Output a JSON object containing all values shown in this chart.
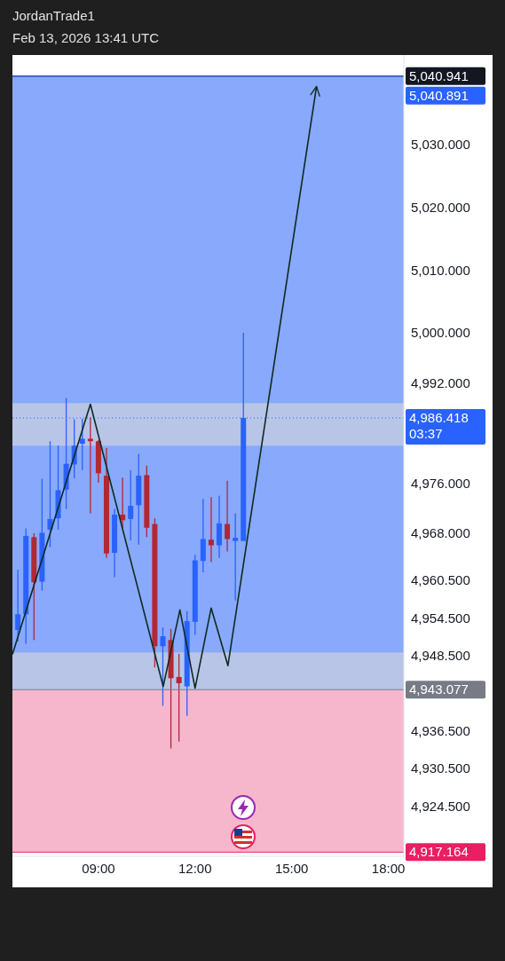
{
  "chart_data": {
    "type": "candlestick",
    "title": "JordanTrade1",
    "subtitle": "Feb 13, 2026 13:41 UTC",
    "x": [
      6.5,
      6.75,
      7,
      7.25,
      7.5,
      7.75,
      8,
      8.25,
      8.5,
      8.75,
      9,
      9.25,
      9.5,
      9.75,
      10,
      10.25,
      10.5,
      10.75,
      11,
      11.25,
      11.5,
      11.75,
      12,
      12.25,
      12.5,
      12.75,
      13,
      13.25,
      13.5
    ],
    "ohlc": [
      [
        4952.6,
        4962.2,
        4950.7,
        4955.1
      ],
      [
        4955.1,
        4968.8,
        4950.4,
        4967.6
      ],
      [
        4967.4,
        4968.0,
        4951.0,
        4960.2
      ],
      [
        4960.3,
        4976.7,
        4958.9,
        4968.1
      ],
      [
        4968.6,
        4982.7,
        4965.8,
        4970.3
      ],
      [
        4970.4,
        4982.0,
        4968.6,
        4974.9
      ],
      [
        4975.0,
        4989.6,
        4971.9,
        4979.1
      ],
      [
        4979.0,
        4986.2,
        4976.8,
        4982.0
      ],
      [
        4982.3,
        4986.3,
        4978.1,
        4983.1
      ],
      [
        4983.1,
        4986.5,
        4971.2,
        4982.7
      ],
      [
        4982.7,
        4982.9,
        4976.1,
        4977.6
      ],
      [
        4977.2,
        4981.6,
        4964.1,
        4964.8
      ],
      [
        4964.9,
        4971.9,
        4961.0,
        4971.0
      ],
      [
        4971.0,
        4976.9,
        4968.8,
        4970.1
      ],
      [
        4970.3,
        4978.1,
        4966.9,
        4972.4
      ],
      [
        4972.5,
        4980.7,
        4966.2,
        4977.2
      ],
      [
        4977.3,
        4978.8,
        4967.4,
        4968.9
      ],
      [
        4969.5,
        4970.4,
        4946.6,
        4950.0
      ],
      [
        4950.0,
        4953.0,
        4940.5,
        4951.6
      ],
      [
        4951.0,
        4952.8,
        4933.7,
        4944.9
      ],
      [
        4945.1,
        4948.8,
        4934.8,
        4944.1
      ],
      [
        4943.6,
        4955.6,
        4938.9,
        4954.0
      ],
      [
        4953.9,
        4964.6,
        4951.8,
        4963.7
      ],
      [
        4963.6,
        4973.5,
        4961.8,
        4967.1
      ],
      [
        4967.0,
        4973.8,
        4963.4,
        4966.1
      ],
      [
        4966.1,
        4974.0,
        4964.1,
        4969.6
      ],
      [
        4969.5,
        4976.4,
        4965.1,
        4967.1
      ],
      [
        4966.8,
        4971.2,
        4957.3,
        4967.3
      ],
      [
        4966.8,
        5000.0,
        4966.8,
        4986.418
      ]
    ],
    "colors": [
      "#2962ff",
      "#2962ff",
      "#b22833",
      "#2962ff",
      "#2962ff",
      "#2962ff",
      "#2962ff",
      "#2962ff",
      "#2962ff",
      "#b22833",
      "#b22833",
      "#b22833",
      "#2962ff",
      "#b22833",
      "#2962ff",
      "#2962ff",
      "#b22833",
      "#b22833",
      "#2962ff",
      "#b22833",
      "#b22833",
      "#2962ff",
      "#2962ff",
      "#2962ff",
      "#b22833",
      "#2962ff",
      "#b22833",
      "#2962ff",
      "#2962ff"
    ],
    "series": [
      {
        "type": "line",
        "color": "#0f2a22",
        "x": [
          6.33,
          8.75,
          11.01,
          11.53,
          12.0,
          12.5,
          13.02,
          15.77
        ],
        "values": [
          4948.7,
          4988.6,
          4943.6,
          4955.8,
          4943.3,
          4956.1,
          4946.9,
          5039.3
        ]
      }
    ],
    "xlim": [
      6.33,
      18.48
    ],
    "xticks": [
      {
        "value": 9,
        "label": "09:00"
      },
      {
        "value": 12,
        "label": "12:00"
      },
      {
        "value": 15,
        "label": "15:00"
      },
      {
        "value": 18,
        "label": "18:00"
      }
    ],
    "ylim": [
      4916.5,
      5044.3
    ],
    "yticks": [
      {
        "value": 4924.5,
        "label": "4,924.500"
      },
      {
        "value": 4930.5,
        "label": "4,930.500"
      },
      {
        "value": 4936.5,
        "label": "4,936.500"
      },
      {
        "value": 4948.5,
        "label": "4,948.500"
      },
      {
        "value": 4954.5,
        "label": "4,954.500"
      },
      {
        "value": 4960.5,
        "label": "4,960.500"
      },
      {
        "value": 4968,
        "label": "4,968.000"
      },
      {
        "value": 4976,
        "label": "4,976.000"
      },
      {
        "value": 4992,
        "label": "4,992.000"
      },
      {
        "value": 5000,
        "label": "5,000.000"
      },
      {
        "value": 5010,
        "label": "5,010.000"
      },
      {
        "value": 5020,
        "label": "5,020.000"
      },
      {
        "value": 5030,
        "label": "5,030.000"
      }
    ],
    "bands": [
      {
        "axis": "y",
        "from": 4943.077,
        "to": 5040.891,
        "color": "#7ba0fc"
      },
      {
        "axis": "y",
        "from": 4917.164,
        "to": 4943.077,
        "color": "#f5afc8"
      },
      {
        "axis": "y",
        "from": 4982.0,
        "to": 4988.8,
        "color": "#d9d9d9"
      },
      {
        "axis": "y",
        "from": 4943.077,
        "to": 4949.0,
        "color": "#d9d9d9"
      }
    ],
    "ref_lines": [
      {
        "axis": "y",
        "value": 5040.941,
        "label": "5,040.941",
        "color": "#131722",
        "line_style": "solid"
      },
      {
        "axis": "y",
        "value": 5040.891,
        "label": "5,040.891",
        "color": "#2962ff",
        "line_style": "solid"
      },
      {
        "axis": "y",
        "value": 4986.418,
        "label": "4,986.418\n03:37",
        "color": "#2962ff",
        "line_style": "dotted"
      },
      {
        "axis": "y",
        "value": 4943.077,
        "label": "4,943.077",
        "color": "#787b86",
        "line_style": "solid"
      },
      {
        "axis": "y",
        "value": 4917.164,
        "label": "4,917.164",
        "color": "#e91e63",
        "line_style": "solid"
      }
    ]
  }
}
